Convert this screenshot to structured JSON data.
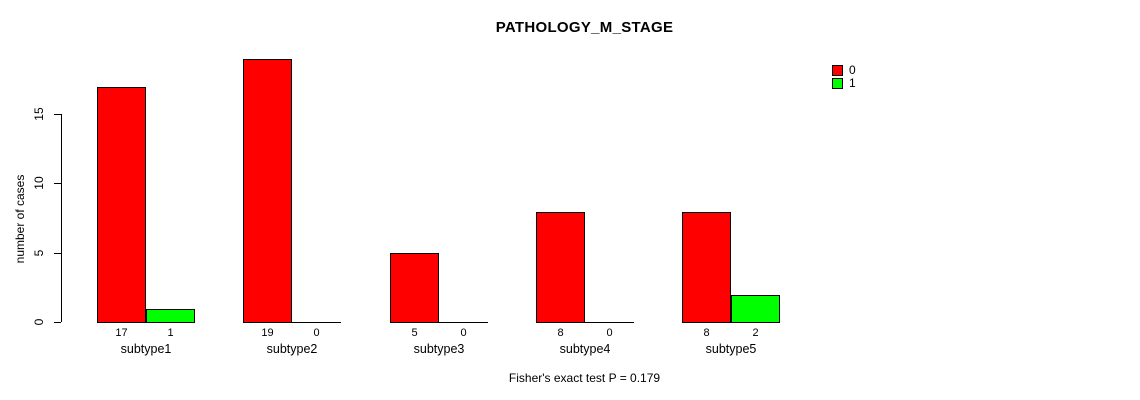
{
  "chart_data": {
    "type": "bar",
    "title": "PATHOLOGY_M_STAGE",
    "categories": [
      "subtype1",
      "subtype2",
      "subtype3",
      "subtype4",
      "subtype5"
    ],
    "series": [
      {
        "name": "0",
        "color": "#FF0000",
        "values": [
          17,
          19,
          5,
          8,
          8
        ]
      },
      {
        "name": "1",
        "color": "#00FF00",
        "values": [
          1,
          0,
          0,
          0,
          2
        ]
      }
    ],
    "ylabel": "number of cases",
    "xlabel": "",
    "yticks": [
      0,
      5,
      10,
      15
    ],
    "ylim": [
      0,
      19
    ],
    "grid": false,
    "bar_value_labels": true,
    "legend_position": "top-right",
    "annotation": "Fisher's exact test P = 0.179"
  },
  "colors": {
    "background": "#FFFFFF",
    "axis": "#000000",
    "text": "#000000"
  }
}
